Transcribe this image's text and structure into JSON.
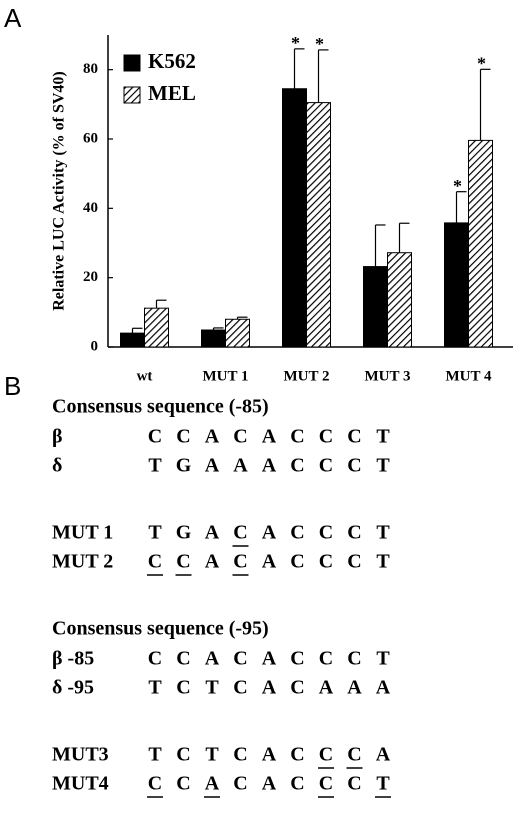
{
  "chart_data": {
    "type": "bar",
    "panel_label": "A",
    "ylabel": "Relative LUC Activity (% of SV40)",
    "categories": [
      "wt",
      "MUT 1",
      "MUT 2",
      "MUT 3",
      "MUT 4"
    ],
    "series": [
      {
        "name": "K562",
        "color": "#000000",
        "pattern": "solid",
        "values": [
          4,
          4.9,
          74.5,
          23.2,
          35.8
        ],
        "errors": [
          1.4,
          0.6,
          11.5,
          12,
          9
        ],
        "annotations": [
          null,
          null,
          "*",
          null,
          "*"
        ]
      },
      {
        "name": "MEL",
        "color": "#000000",
        "pattern": "hatch",
        "values": [
          11.2,
          8,
          70.5,
          27.2,
          59.6
        ],
        "errors": [
          2.3,
          0.6,
          15.2,
          8.5,
          20.5
        ],
        "annotations": [
          null,
          null,
          "*",
          null,
          "*"
        ]
      }
    ],
    "ylim": [
      0,
      90
    ],
    "yticks": [
      0,
      20,
      40,
      60,
      80
    ],
    "legend": "top-left"
  },
  "panel_b": {
    "label": "B",
    "sections": [
      {
        "title": "Consensus sequence (-85)",
        "rows": [
          {
            "name": "β",
            "letters": [
              "C",
              "C",
              "A",
              "C",
              "A",
              "C",
              "C",
              "C",
              "T"
            ],
            "underlined": [
              false,
              false,
              false,
              false,
              false,
              false,
              false,
              false,
              false
            ]
          },
          {
            "name": "δ",
            "letters": [
              "T",
              "G",
              "A",
              "A",
              "A",
              "C",
              "C",
              "C",
              "T"
            ],
            "underlined": [
              false,
              false,
              false,
              false,
              false,
              false,
              false,
              false,
              false
            ]
          }
        ]
      },
      {
        "title": null,
        "rows": [
          {
            "name": "MUT 1",
            "letters": [
              "T",
              "G",
              "A",
              "C",
              "A",
              "C",
              "C",
              "C",
              "T"
            ],
            "underlined": [
              false,
              false,
              false,
              true,
              false,
              false,
              false,
              false,
              false
            ]
          },
          {
            "name": "MUT 2",
            "letters": [
              "C",
              "C",
              "A",
              "C",
              "A",
              "C",
              "C",
              "C",
              "T"
            ],
            "underlined": [
              true,
              true,
              false,
              true,
              false,
              false,
              false,
              false,
              false
            ]
          }
        ]
      },
      {
        "title": "Consensus sequence (-95)",
        "rows": [
          {
            "name": "β -85",
            "letters": [
              "C",
              "C",
              "A",
              "C",
              "A",
              "C",
              "C",
              "C",
              "T"
            ],
            "underlined": [
              false,
              false,
              false,
              false,
              false,
              false,
              false,
              false,
              false
            ]
          },
          {
            "name": "δ -95",
            "letters": [
              "T",
              "C",
              "T",
              "C",
              "A",
              "C",
              "A",
              "A",
              "A"
            ],
            "underlined": [
              false,
              false,
              false,
              false,
              false,
              false,
              false,
              false,
              false
            ]
          }
        ]
      },
      {
        "title": null,
        "rows": [
          {
            "name": "MUT3",
            "letters": [
              "T",
              "C",
              "T",
              "C",
              "A",
              "C",
              "C",
              "C",
              "A"
            ],
            "underlined": [
              false,
              false,
              false,
              false,
              false,
              false,
              true,
              true,
              false
            ]
          },
          {
            "name": "MUT4",
            "letters": [
              "C",
              "C",
              "A",
              "C",
              "A",
              "C",
              "C",
              "C",
              "T"
            ],
            "underlined": [
              true,
              false,
              true,
              false,
              false,
              false,
              true,
              false,
              true
            ]
          }
        ]
      }
    ]
  }
}
